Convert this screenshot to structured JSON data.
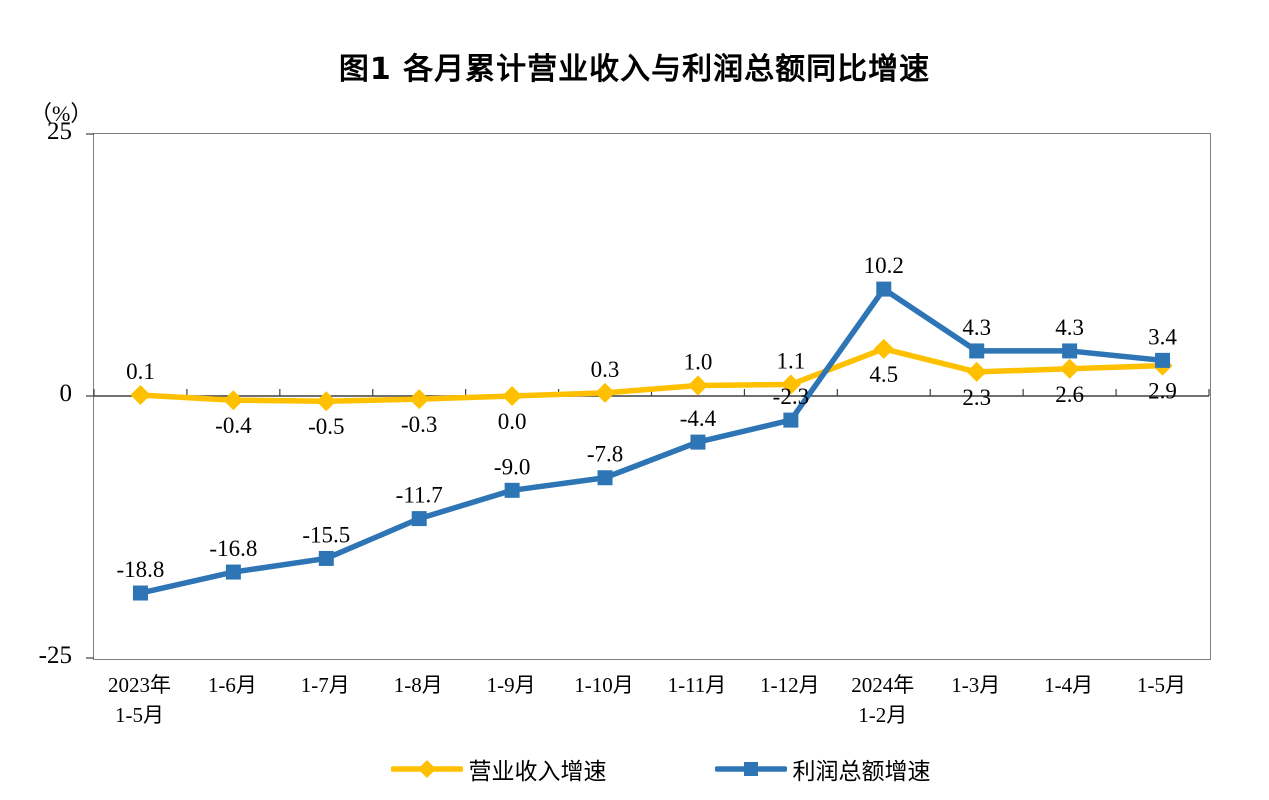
{
  "title": "图1  各月累计营业收入与利润总额同比增速",
  "chart_data": {
    "type": "line",
    "title": "图1  各月累计营业收入与利润总额同比增速",
    "unit_label": "（%）",
    "xlabel": "",
    "ylabel": "（%）",
    "ylim": [
      -25,
      25
    ],
    "y_ticks": [
      25,
      0,
      -25
    ],
    "grid": false,
    "legend_position": "bottom",
    "axis_color": "#808080",
    "zero_line_color": "#404040",
    "categories": [
      "2023年\n1-5月",
      "1-6月",
      "1-7月",
      "1-8月",
      "1-9月",
      "1-10月",
      "1-11月",
      "1-12月",
      "2024年\n1-2月",
      "1-3月",
      "1-4月",
      "1-5月"
    ],
    "series": [
      {
        "name": "营业收入增速",
        "color": "#FFC000",
        "marker": "diamond",
        "values": [
          0.1,
          -0.4,
          -0.5,
          -0.3,
          0.0,
          0.3,
          1.0,
          1.1,
          4.5,
          2.3,
          2.6,
          2.9
        ],
        "label_positions": [
          "above",
          "below",
          "below",
          "below",
          "below",
          "above",
          "above",
          "above",
          "below",
          "below",
          "below",
          "below"
        ]
      },
      {
        "name": "利润总额增速",
        "color": "#2E75B6",
        "marker": "square",
        "values": [
          -18.8,
          -16.8,
          -15.5,
          -11.7,
          -9.0,
          -7.8,
          -4.4,
          -2.3,
          10.2,
          4.3,
          4.3,
          3.4
        ],
        "label_positions": [
          "above",
          "above",
          "above",
          "above",
          "above",
          "above",
          "above",
          "above",
          "above",
          "above",
          "above",
          "above"
        ]
      }
    ]
  }
}
